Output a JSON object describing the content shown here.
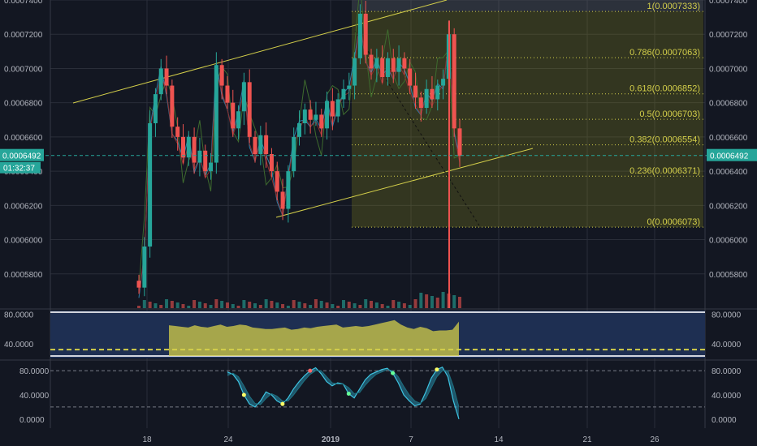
{
  "chart_data": [
    {
      "type": "candlestick",
      "title": "",
      "x_ticks": [
        "18",
        "24",
        "2019",
        "7",
        "14",
        "21",
        "26"
      ],
      "y_ticks": [
        "0.0007400",
        "0.0007200",
        "0.0007000",
        "0.0006800",
        "0.0006600",
        "0.0006400",
        "0.0006200",
        "0.0006000",
        "0.0005800"
      ],
      "ylim": [
        0.00056,
        0.00074
      ],
      "grid": true,
      "current_price": "0.0006492",
      "countdown": "01:32:37",
      "price_badge_color": "#26a69a",
      "fib_levels": [
        {
          "ratio": 1,
          "price": 0.0007333,
          "label": "1(0.0007333)"
        },
        {
          "ratio": 0.786,
          "price": 0.0007063,
          "label": "0.786(0.0007063)"
        },
        {
          "ratio": 0.618,
          "price": 0.0006852,
          "label": "0.618(0.0006852)"
        },
        {
          "ratio": 0.5,
          "price": 0.0006703,
          "label": "0.5(0.0006703)"
        },
        {
          "ratio": 0.382,
          "price": 0.0006554,
          "label": "0.382(0.0006554)"
        },
        {
          "ratio": 0.236,
          "price": 0.0006371,
          "label": "0.236(0.0006371)"
        },
        {
          "ratio": 0,
          "price": 0.0006073,
          "label": "0(0.0006073)"
        }
      ],
      "close_series": [
        0.000572,
        0.000596,
        0.000668,
        0.000685,
        0.0007,
        0.00069,
        0.000666,
        0.00066,
        0.000648,
        0.00066,
        0.000645,
        0.000652,
        0.00064,
        0.000645,
        0.000702,
        0.00069,
        0.00068,
        0.000665,
        0.000675,
        0.000692,
        0.00066,
        0.00065,
        0.000661,
        0.00065,
        0.00064,
        0.000628,
        0.000618,
        0.00064,
        0.00066,
        0.000668,
        0.000676,
        0.00067,
        0.000673,
        0.000665,
        0.000681,
        0.000672,
        0.000682,
        0.000688,
        0.00069,
        0.000706,
        0.000732,
        0.000708,
        0.0007,
        0.000706,
        0.000695,
        0.000706,
        0.000698,
        0.000706,
        0.0007,
        0.00069,
        0.000683,
        0.000677,
        0.000688,
        0.000682,
        0.00069,
        0.000694,
        0.00072,
        0.000665,
        0.000649
      ],
      "colors": {
        "up": "#26a69a",
        "down": "#ef5350",
        "fib": "#d4cf4a",
        "channel": "#d4cf4a"
      }
    },
    {
      "type": "area",
      "title": "",
      "y_ticks": [
        "80.0000",
        "40.0000"
      ],
      "ylim": [
        20,
        85
      ],
      "values": [
        65,
        64,
        63,
        62,
        65,
        63,
        62,
        64,
        66,
        63,
        64,
        66,
        65,
        62,
        61,
        60,
        60,
        61,
        62,
        59,
        60,
        62,
        61,
        63,
        64,
        65,
        66,
        62,
        63,
        64,
        63,
        64,
        66,
        68,
        70,
        72,
        66,
        62,
        60,
        63,
        61,
        57,
        58,
        58,
        59,
        70
      ],
      "reference_line": 32
    },
    {
      "type": "line",
      "title": "",
      "y_ticks": [
        "80.0000",
        "40.0000",
        "0.0000"
      ],
      "ylim": [
        -15,
        95
      ],
      "reference_lines": [
        80,
        20
      ],
      "series": [
        {
          "values": [
            78,
            74,
            62,
            40,
            25,
            20,
            30,
            45,
            40,
            30,
            25,
            35,
            50,
            62,
            72,
            80,
            85,
            75,
            62,
            55,
            60,
            58,
            42,
            35,
            50,
            65,
            74,
            78,
            82,
            84,
            76,
            60,
            40,
            30,
            22,
            25,
            45,
            68,
            82,
            86,
            70,
            30,
            0
          ]
        },
        {
          "values": [
            72,
            76,
            70,
            55,
            38,
            26,
            24,
            34,
            42,
            38,
            30,
            30,
            40,
            52,
            64,
            74,
            80,
            80,
            70,
            60,
            58,
            58,
            52,
            42,
            44,
            56,
            66,
            74,
            78,
            82,
            80,
            70,
            54,
            40,
            30,
            26,
            34,
            52,
            70,
            80,
            80,
            54,
            20
          ]
        }
      ]
    }
  ]
}
